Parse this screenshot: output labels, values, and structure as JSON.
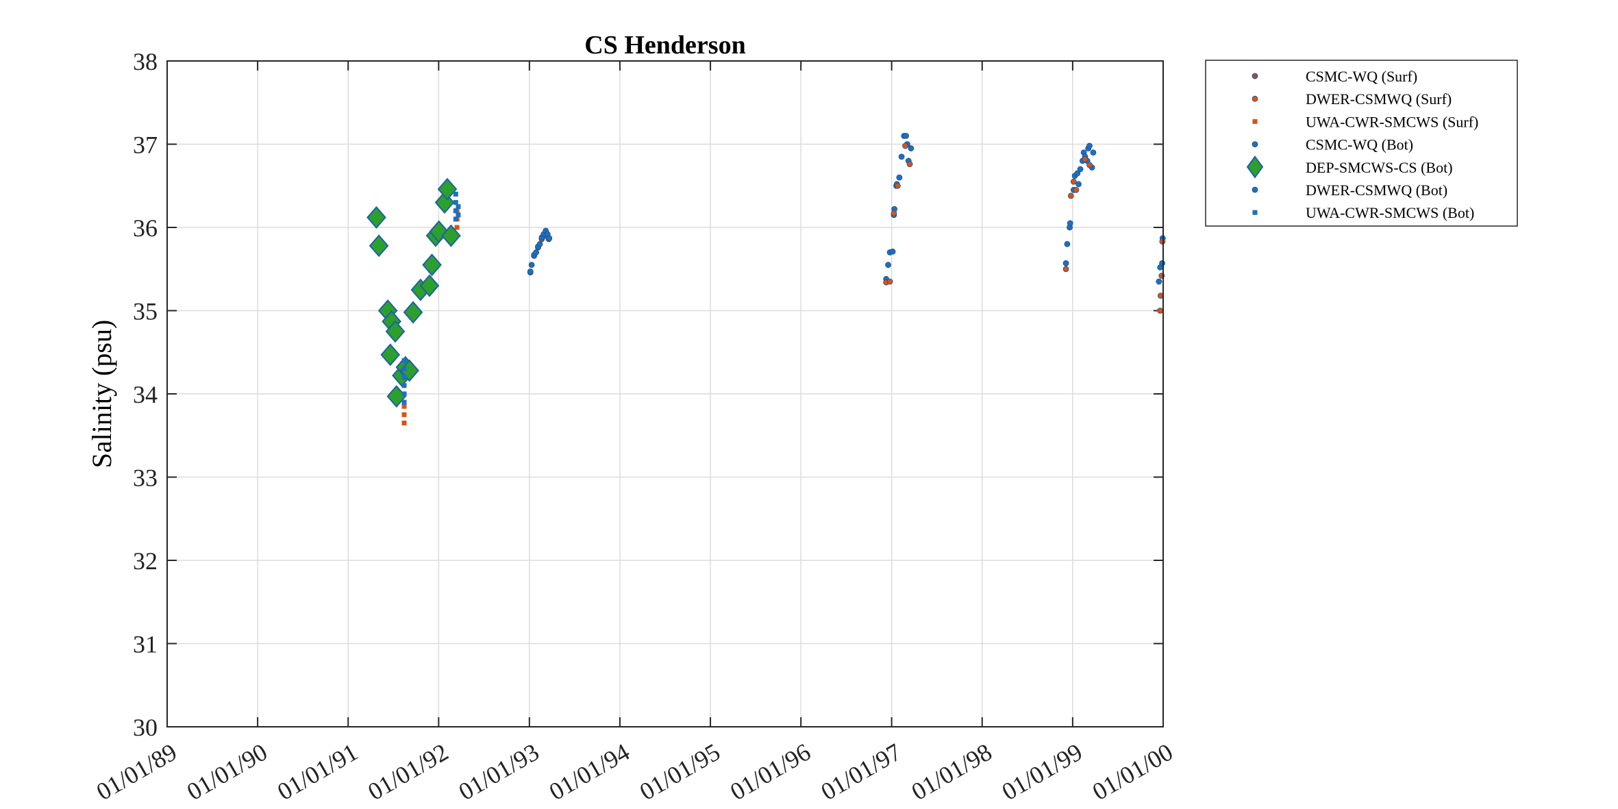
{
  "chart_data": {
    "type": "scatter",
    "title": "CS Henderson",
    "xlabel": "",
    "ylabel": "Salinity (psu)",
    "ylim": [
      30,
      38
    ],
    "xlim": [
      "1989-01-01",
      "2000-01-01"
    ],
    "x_ticks": [
      "1989-01-01",
      "1990-01-01",
      "1991-01-01",
      "1992-01-01",
      "1993-01-01",
      "1994-01-01",
      "1995-01-01",
      "1996-01-01",
      "1997-01-01",
      "1998-01-01",
      "1999-01-01",
      "2000-01-01"
    ],
    "x_tick_labels": [
      "01/01/89",
      "01/01/90",
      "01/01/91",
      "01/01/92",
      "01/01/93",
      "01/01/94",
      "01/01/95",
      "01/01/96",
      "01/01/97",
      "01/01/98",
      "01/01/99",
      "01/01/00"
    ],
    "y_ticks": [
      30,
      31,
      32,
      33,
      34,
      35,
      36,
      37,
      38
    ],
    "grid": true,
    "legend_position": "outside top-right",
    "series": [
      {
        "name": "CSMC-WQ (Surf)",
        "marker": "circle",
        "color": "#8c564b",
        "points": [
          [
            "1993-01-05",
            35.46
          ],
          [
            "1993-01-20",
            35.66
          ],
          [
            "1993-02-05",
            35.76
          ],
          [
            "1993-02-20",
            35.86
          ],
          [
            "1993-03-10",
            35.9
          ],
          [
            "1993-03-20",
            35.86
          ]
        ]
      },
      {
        "name": "DWER-CSMWQ (Surf)",
        "marker": "circle",
        "color": "#d95319",
        "points": [
          [
            "1996-12-10",
            35.34
          ],
          [
            "1996-12-25",
            35.35
          ],
          [
            "1997-01-10",
            36.17
          ],
          [
            "1997-01-25",
            36.5
          ],
          [
            "1997-02-25",
            36.98
          ],
          [
            "1997-03-15",
            36.76
          ],
          [
            "1998-12-05",
            35.5
          ],
          [
            "1998-12-25",
            36.38
          ],
          [
            "1999-01-05",
            36.55
          ],
          [
            "1999-01-15",
            36.45
          ],
          [
            "1999-02-20",
            36.82
          ],
          [
            "1999-03-10",
            36.75
          ],
          [
            "1999-12-20",
            35.0
          ],
          [
            "1999-12-22",
            35.18
          ],
          [
            "1999-12-26",
            35.42
          ],
          [
            "1999-12-29",
            35.83
          ]
        ]
      },
      {
        "name": "UWA-CWR-SMCWS (Surf)",
        "marker": "square",
        "color": "#d95319",
        "points": [
          [
            "1991-08-15",
            33.65
          ],
          [
            "1991-08-15",
            33.75
          ],
          [
            "1991-08-15",
            33.85
          ],
          [
            "1991-08-15",
            34.0
          ],
          [
            "1991-08-15",
            34.2
          ],
          [
            "1992-03-15",
            36.0
          ],
          [
            "1992-03-15",
            36.1
          ],
          [
            "1992-03-15",
            36.2
          ]
        ]
      },
      {
        "name": "CSMC-WQ (Bot)",
        "marker": "circle",
        "color": "#1f6fbf",
        "points": [
          [
            "1993-01-05",
            35.47
          ],
          [
            "1993-01-10",
            35.55
          ],
          [
            "1993-01-20",
            35.67
          ],
          [
            "1993-01-28",
            35.7
          ],
          [
            "1993-02-05",
            35.77
          ],
          [
            "1993-02-12",
            35.8
          ],
          [
            "1993-02-20",
            35.88
          ],
          [
            "1993-02-28",
            35.92
          ],
          [
            "1993-03-08",
            35.96
          ],
          [
            "1993-03-15",
            35.92
          ],
          [
            "1993-03-22",
            35.87
          ]
        ]
      },
      {
        "name": "DEP-SMCWS-CS (Bot)",
        "marker": "diamond",
        "color": "#2ca02c",
        "points": [
          [
            "1991-04-25",
            36.12
          ],
          [
            "1991-05-05",
            35.78
          ],
          [
            "1991-06-10",
            35.0
          ],
          [
            "1991-06-20",
            34.47
          ],
          [
            "1991-06-25",
            34.87
          ],
          [
            "1991-07-10",
            34.75
          ],
          [
            "1991-07-15",
            33.97
          ],
          [
            "1991-08-05",
            34.22
          ],
          [
            "1991-08-20",
            34.32
          ],
          [
            "1991-09-05",
            34.28
          ],
          [
            "1991-09-20",
            34.98
          ],
          [
            "1991-10-20",
            35.25
          ],
          [
            "1991-11-25",
            35.3
          ],
          [
            "1991-12-05",
            35.55
          ],
          [
            "1991-12-20",
            35.9
          ],
          [
            "1992-01-02",
            35.95
          ],
          [
            "1992-01-25",
            36.3
          ],
          [
            "1992-02-05",
            36.46
          ],
          [
            "1992-02-20",
            35.9
          ]
        ]
      },
      {
        "name": "DWER-CSMWQ (Bot)",
        "marker": "circle",
        "color": "#1f6fbf",
        "points": [
          [
            "1996-12-10",
            35.38
          ],
          [
            "1996-12-18",
            35.55
          ],
          [
            "1996-12-25",
            35.7
          ],
          [
            "1997-01-05",
            35.71
          ],
          [
            "1997-01-10",
            36.15
          ],
          [
            "1997-01-12",
            36.22
          ],
          [
            "1997-01-20",
            36.5
          ],
          [
            "1997-01-22",
            36.52
          ],
          [
            "1997-02-01",
            36.6
          ],
          [
            "1997-02-10",
            36.85
          ],
          [
            "1997-02-20",
            37.1
          ],
          [
            "1997-02-28",
            37.1
          ],
          [
            "1997-03-05",
            37.0
          ],
          [
            "1997-03-10",
            36.8
          ],
          [
            "1997-03-20",
            36.95
          ],
          [
            "1998-12-05",
            35.57
          ],
          [
            "1998-12-10",
            35.8
          ],
          [
            "1998-12-20",
            36.0
          ],
          [
            "1998-12-22",
            36.05
          ],
          [
            "1999-01-05",
            36.45
          ],
          [
            "1999-01-10",
            36.62
          ],
          [
            "1999-01-20",
            36.65
          ],
          [
            "1999-01-25",
            36.52
          ],
          [
            "1999-02-01",
            36.7
          ],
          [
            "1999-02-10",
            36.8
          ],
          [
            "1999-02-15",
            36.9
          ],
          [
            "1999-02-20",
            36.85
          ],
          [
            "1999-03-01",
            36.8
          ],
          [
            "1999-03-05",
            36.95
          ],
          [
            "1999-03-10",
            36.98
          ],
          [
            "1999-03-20",
            36.72
          ],
          [
            "1999-03-25",
            36.9
          ],
          [
            "1999-12-15",
            35.35
          ],
          [
            "1999-12-20",
            35.52
          ],
          [
            "1999-12-28",
            35.57
          ],
          [
            "1999-12-30",
            35.87
          ]
        ]
      },
      {
        "name": "UWA-CWR-SMCWS (Bot)",
        "marker": "square",
        "color": "#1f6fbf",
        "points": [
          [
            "1991-08-15",
            33.9
          ],
          [
            "1991-08-15",
            34.0
          ],
          [
            "1991-08-15",
            34.1
          ],
          [
            "1991-08-15",
            34.2
          ],
          [
            "1991-08-15",
            34.3
          ],
          [
            "1991-08-15",
            34.4
          ],
          [
            "1992-03-10",
            36.1
          ],
          [
            "1992-03-10",
            36.2
          ],
          [
            "1992-03-10",
            36.3
          ],
          [
            "1992-03-10",
            36.4
          ],
          [
            "1992-03-20",
            36.15
          ],
          [
            "1992-03-20",
            36.25
          ]
        ]
      }
    ]
  }
}
